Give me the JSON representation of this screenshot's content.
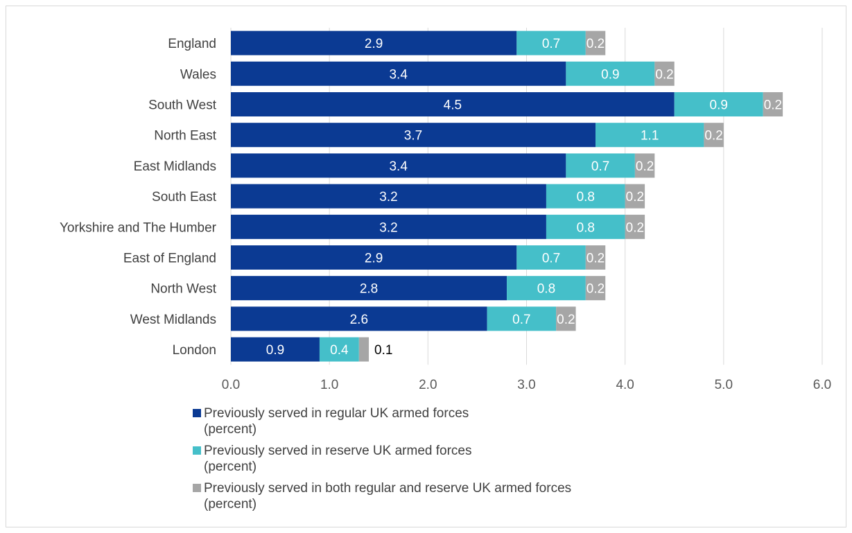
{
  "chart_data": {
    "type": "bar",
    "orientation": "horizontal",
    "stacked": true,
    "categories": [
      "England",
      "Wales",
      "South West",
      "North East",
      "East Midlands",
      "South East",
      "Yorkshire and The Humber",
      "East of England",
      "North West",
      "West Midlands",
      "London"
    ],
    "series": [
      {
        "name": "Previously served in regular UK armed forces (percent)",
        "name_lines": [
          "Previously served in regular UK armed forces",
          "(percent)"
        ],
        "color": "#0b3a93",
        "label_color": "#ffffff",
        "values": [
          2.9,
          3.4,
          4.5,
          3.7,
          3.4,
          3.2,
          3.2,
          2.9,
          2.8,
          2.6,
          0.9
        ]
      },
      {
        "name": "Previously served in reserve UK armed forces (percent)",
        "name_lines": [
          "Previously served in reserve UK armed forces",
          "(percent)"
        ],
        "color": "#45bfc9",
        "label_color": "#ffffff",
        "values": [
          0.7,
          0.9,
          0.9,
          1.1,
          0.7,
          0.8,
          0.8,
          0.7,
          0.8,
          0.7,
          0.4
        ]
      },
      {
        "name": "Previously served in both regular and reserve UK armed forces (percent)",
        "name_lines": [
          "Previously served in both regular and reserve UK armed forces",
          "(percent)"
        ],
        "color": "#a6a6a6",
        "label_color": "#ffffff",
        "values": [
          0.2,
          0.2,
          0.2,
          0.2,
          0.2,
          0.2,
          0.2,
          0.2,
          0.2,
          0.2,
          0.1
        ]
      }
    ],
    "xlim": [
      0,
      6
    ],
    "xticks": [
      "0.0",
      "1.0",
      "2.0",
      "3.0",
      "4.0",
      "5.0",
      "6.0"
    ],
    "xtick_values": [
      0,
      1,
      2,
      3,
      4,
      5,
      6
    ],
    "value_labels": [
      [
        "2.9",
        "0.7",
        "0.2"
      ],
      [
        "3.4",
        "0.9",
        "0.2"
      ],
      [
        "4.5",
        "0.9",
        "0.2"
      ],
      [
        "3.7",
        "1.1",
        "0.2"
      ],
      [
        "3.4",
        "0.7",
        "0.2"
      ],
      [
        "3.2",
        "0.8",
        "0.2"
      ],
      [
        "3.2",
        "0.8",
        "0.2"
      ],
      [
        "2.9",
        "0.7",
        "0.2"
      ],
      [
        "2.8",
        "0.8",
        "0.2"
      ],
      [
        "2.6",
        "0.7",
        "0.2"
      ],
      [
        "0.9",
        "0.4",
        "0.1"
      ]
    ],
    "outside_label_color": "#000000",
    "grid": true,
    "gridline_color": "#d9d9d9",
    "legend_position": "bottom",
    "title": "",
    "xlabel": "",
    "ylabel": ""
  }
}
